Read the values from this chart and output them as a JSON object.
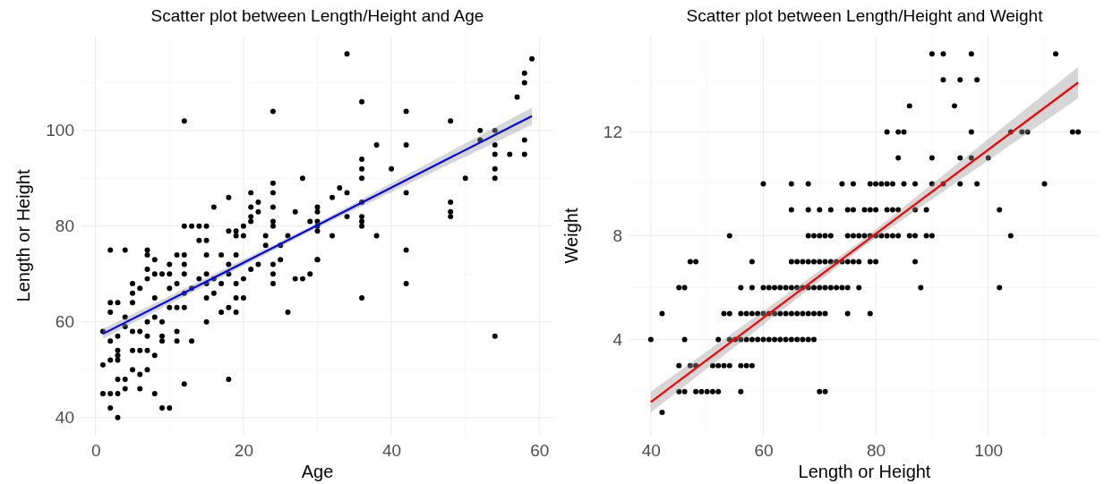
{
  "chart_data": [
    {
      "type": "scatter",
      "title": "Scatter plot between Length/Height and Age",
      "xlabel": "Age",
      "ylabel": "Length or Height",
      "xlim": [
        -1.9,
        61.9
      ],
      "ylim": [
        36.2,
        119.8
      ],
      "xticks": [
        0,
        20,
        40,
        60
      ],
      "yticks": [
        40,
        60,
        80,
        100
      ],
      "grid": true,
      "series": [
        {
          "marker": "circle",
          "color": "#000000",
          "x": [
            34,
            59,
            58,
            58,
            57,
            36,
            24,
            42,
            12,
            48,
            52,
            54,
            52,
            54,
            58,
            38,
            42,
            36,
            36,
            36,
            54,
            56,
            58,
            54,
            54,
            50,
            40,
            28,
            24,
            24,
            21,
            34,
            42,
            33,
            18,
            32,
            36,
            48,
            48,
            48,
            22,
            21,
            16,
            24,
            30,
            22,
            27,
            30,
            36,
            34,
            36,
            36,
            21,
            21,
            29,
            30,
            30,
            30,
            32,
            38,
            24,
            24,
            12,
            13,
            14,
            15,
            42,
            2,
            4,
            7,
            18,
            19,
            20,
            19,
            20,
            23,
            26,
            14,
            15,
            25,
            23,
            30,
            1,
            1,
            2,
            3,
            2,
            3,
            4,
            3,
            4,
            2,
            3,
            3,
            6,
            5,
            6,
            7,
            8,
            9,
            10,
            12,
            18,
            8,
            5,
            6,
            7,
            9,
            9,
            11,
            11,
            13,
            15,
            17,
            18,
            19,
            19,
            20,
            26,
            36,
            42,
            54,
            27,
            28,
            29,
            30,
            24,
            24,
            24,
            22,
            1,
            2,
            2,
            3,
            4,
            4,
            5,
            5,
            5,
            6,
            7,
            7,
            8,
            8,
            8,
            9,
            9,
            10,
            10,
            10,
            10,
            11,
            11,
            12,
            12,
            12,
            12,
            12,
            13,
            14,
            15,
            15,
            15,
            16,
            16,
            17,
            18,
            19,
            20,
            21,
            7,
            7,
            6,
            5,
            3,
            2,
            3,
            7,
            8,
            11,
            15,
            17,
            19,
            18,
            25
          ],
          "values": [
            116,
            115,
            112,
            110,
            107,
            106,
            104,
            104,
            102,
            102,
            100,
            100,
            98,
            97,
            98,
            97,
            97,
            94,
            92,
            90,
            95,
            95,
            95,
            92,
            90,
            90,
            92,
            90,
            89,
            87,
            87,
            87,
            87,
            88,
            86,
            86,
            85,
            85,
            83,
            82,
            85,
            84,
            84,
            84,
            84,
            83,
            83,
            83,
            82,
            82,
            81,
            80,
            82,
            81,
            81,
            81,
            80,
            79,
            78,
            78,
            81,
            80,
            80,
            80,
            80,
            80,
            75,
            75,
            75,
            75,
            79,
            79,
            80,
            78,
            78,
            78,
            78,
            77,
            77,
            76,
            76,
            73,
            51,
            45,
            42,
            40,
            45,
            45,
            46,
            48,
            48,
            52,
            52,
            53,
            46,
            50,
            49,
            50,
            45,
            42,
            42,
            47,
            48,
            53,
            54,
            54,
            54,
            57,
            56,
            58,
            56,
            56,
            60,
            62,
            63,
            62,
            65,
            65,
            62,
            65,
            68,
            57,
            69,
            69,
            70,
            73,
            68,
            70,
            72,
            72,
            58,
            62,
            64,
            64,
            61,
            59,
            64,
            66,
            68,
            67,
            69,
            71,
            70,
            65,
            61,
            60,
            70,
            72,
            70,
            67,
            63,
            63,
            68,
            63,
            66,
            70,
            72,
            74,
            67,
            69,
            65,
            68,
            70,
            66,
            69,
            68,
            70,
            68,
            69,
            71,
            60,
            57,
            58,
            58,
            57,
            56,
            54,
            74,
            73,
            74,
            74,
            74,
            74,
            72,
            73
          ]
        },
        {
          "type": "line",
          "color": "#0000ff",
          "x": [
            1,
            30,
            59
          ],
          "values": [
            57.5,
            80.2,
            103
          ],
          "lower": [
            56.5,
            79.7,
            101.2
          ],
          "upper": [
            58.5,
            80.7,
            104.8
          ]
        }
      ]
    },
    {
      "type": "scatter",
      "title": "Scatter plot between Length/Height and Weight",
      "xlabel": "Length or Height",
      "ylabel": "Weight",
      "xlim": [
        36.2,
        119.8
      ],
      "ylim": [
        0.3,
        15.7
      ],
      "xticks": [
        40,
        60,
        80,
        100
      ],
      "yticks": [
        4,
        8,
        12
      ],
      "grid": true,
      "series": [
        {
          "marker": "circle",
          "color": "#000000",
          "x": [
            90,
            92,
            97,
            112,
            92,
            95,
            98,
            86,
            94,
            82,
            84,
            85,
            97,
            104,
            106,
            107,
            115,
            116,
            84,
            90,
            95,
            97,
            100,
            60,
            65,
            68,
            74,
            76,
            79,
            80,
            81,
            82,
            83,
            85,
            87,
            90,
            92,
            95,
            98,
            110,
            65,
            68,
            70,
            72,
            75,
            76,
            78,
            79,
            80,
            82,
            83,
            84,
            87,
            89,
            102,
            54,
            68,
            69,
            70,
            71,
            72,
            75,
            76,
            77,
            78,
            79,
            80,
            81,
            82,
            83,
            84,
            86,
            87,
            89,
            90,
            104,
            47,
            48,
            58,
            65,
            66,
            67,
            68,
            69,
            70,
            71,
            72,
            73,
            74,
            75,
            76,
            77,
            79,
            80,
            87,
            45,
            46,
            56,
            58,
            60,
            61,
            62,
            63,
            64,
            65,
            66,
            67,
            68,
            69,
            70,
            71,
            72,
            73,
            74,
            75,
            77,
            88,
            102,
            42,
            53,
            54,
            56,
            57,
            58,
            59,
            60,
            61,
            62,
            63,
            64,
            65,
            66,
            67,
            68,
            69,
            70,
            71,
            75,
            79,
            40,
            46,
            52,
            54,
            55,
            56,
            57,
            58,
            59,
            60,
            61,
            62,
            63,
            64,
            65,
            66,
            67,
            68,
            69,
            45,
            47,
            48,
            51,
            52,
            53,
            54,
            56,
            57,
            58,
            45,
            46,
            48,
            49,
            50,
            51,
            52,
            56,
            70,
            71,
            42
          ],
          "values": [
            15,
            15,
            15,
            15,
            14,
            14,
            14,
            13,
            13,
            12,
            12,
            12,
            12,
            12,
            12,
            12,
            12,
            12,
            11,
            11,
            11,
            11,
            11,
            10,
            10,
            10,
            10,
            10,
            10,
            10,
            10,
            10,
            10,
            10,
            10,
            10,
            10,
            10,
            10,
            10,
            9,
            9,
            9,
            9,
            9,
            9,
            9,
            9,
            9,
            9,
            9,
            9,
            9,
            9,
            9,
            8,
            8,
            8,
            8,
            8,
            8,
            8,
            8,
            8,
            8,
            8,
            8,
            8,
            8,
            8,
            8,
            8,
            8,
            8,
            8,
            8,
            7,
            7,
            7,
            7,
            7,
            7,
            7,
            7,
            7,
            7,
            7,
            7,
            7,
            7,
            7,
            7,
            7,
            7,
            7,
            6,
            6,
            6,
            6,
            6,
            6,
            6,
            6,
            6,
            6,
            6,
            6,
            6,
            6,
            6,
            6,
            6,
            6,
            6,
            6,
            6,
            6,
            6,
            5,
            5,
            5,
            5,
            5,
            5,
            5,
            5,
            5,
            5,
            5,
            5,
            5,
            5,
            5,
            5,
            5,
            5,
            5,
            5,
            5,
            4,
            4,
            4,
            4,
            4,
            4,
            4,
            4,
            4,
            4,
            4,
            4,
            4,
            4,
            4,
            4,
            4,
            4,
            4,
            3,
            3,
            3,
            3,
            3,
            3,
            3,
            3,
            3,
            3,
            2,
            2,
            2,
            2,
            2,
            2,
            2,
            2,
            2,
            2,
            1.2
          ]
        },
        {
          "type": "line",
          "color": "#ff0000",
          "x": [
            40,
            78,
            116
          ],
          "values": [
            1.6,
            7.75,
            13.9
          ],
          "lower": [
            1.2,
            7.6,
            13.3
          ],
          "upper": [
            2.0,
            7.9,
            14.5
          ]
        }
      ]
    }
  ]
}
